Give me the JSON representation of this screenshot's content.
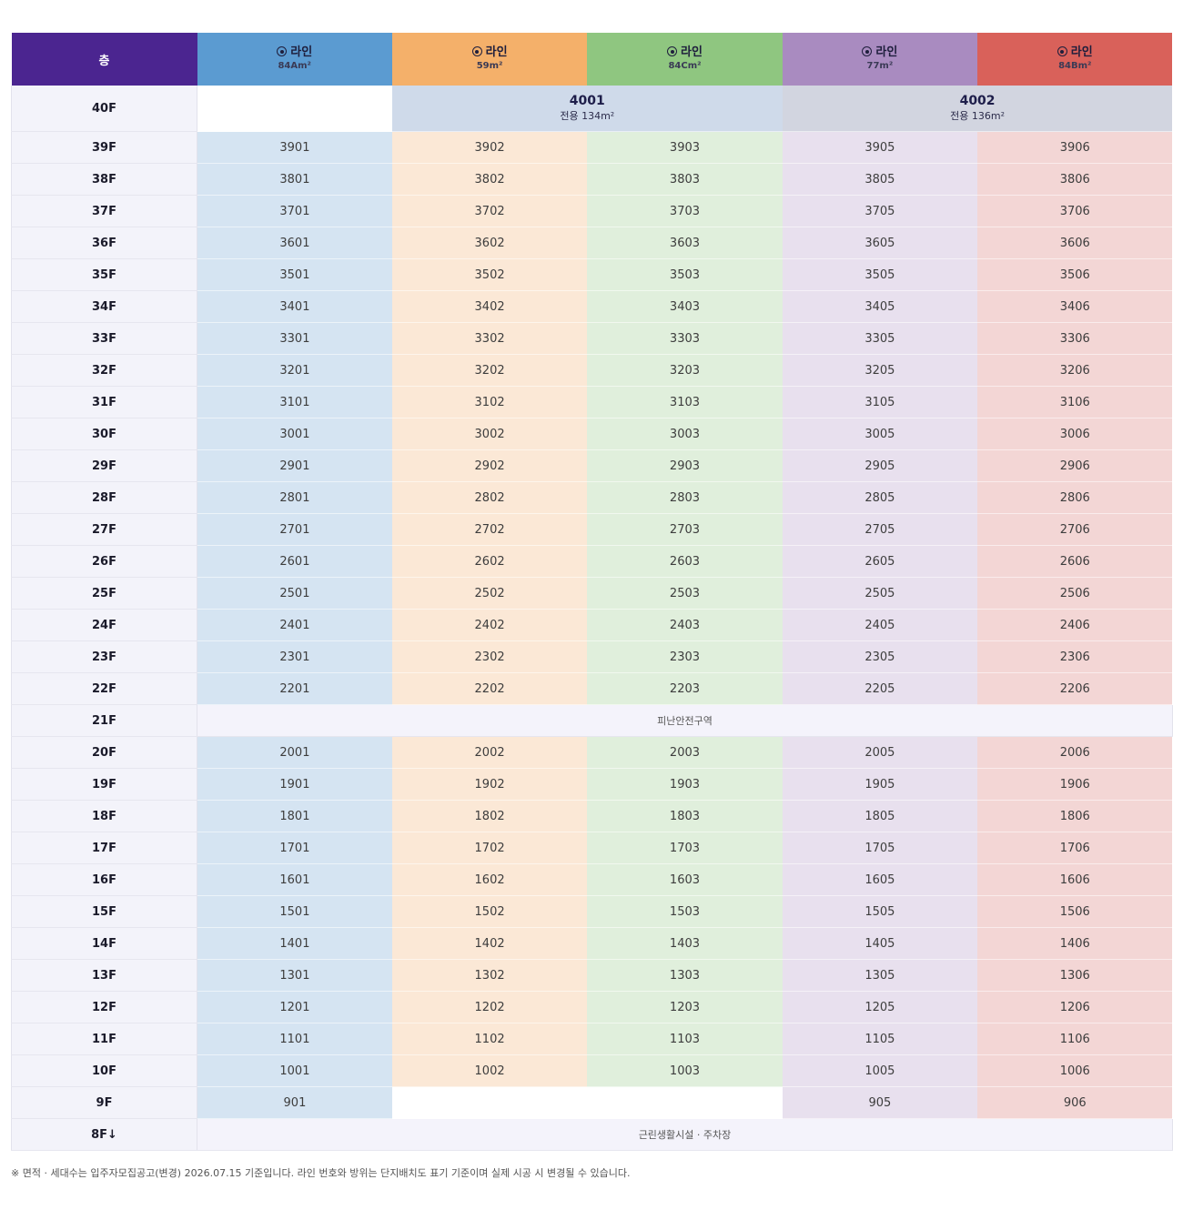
{
  "header": {
    "floor_label": "층",
    "lines": [
      {
        "label": "라인",
        "area": "84Am²",
        "color": "#5b9bd1"
      },
      {
        "label": "라인",
        "area": "59m²",
        "color": "#f4b06a"
      },
      {
        "label": "라인",
        "area": "84Cm²",
        "color": "#8fc680"
      },
      {
        "label": "라인",
        "area": "77m²",
        "color": "#a98bc0"
      },
      {
        "label": "라인",
        "area": "84Bm²",
        "color": "#d9615a"
      }
    ]
  },
  "cell_colors": [
    "#d5e4f2",
    "#fbe8d6",
    "#e0efdc",
    "#e8e0ee",
    "#f3d6d5"
  ],
  "penthouse": {
    "floor": "40F",
    "units": [
      {
        "number": "4001",
        "area": "전용 134m²",
        "color": "#cfdaea"
      },
      {
        "number": "4002",
        "area": "전용 136m²",
        "color": "#d2d5e0"
      }
    ]
  },
  "rows_upper": [
    {
      "floor": "39F",
      "units": [
        "3901",
        "3902",
        "3903",
        "3905",
        "3906"
      ]
    },
    {
      "floor": "38F",
      "units": [
        "3801",
        "3802",
        "3803",
        "3805",
        "3806"
      ]
    },
    {
      "floor": "37F",
      "units": [
        "3701",
        "3702",
        "3703",
        "3705",
        "3706"
      ]
    },
    {
      "floor": "36F",
      "units": [
        "3601",
        "3602",
        "3603",
        "3605",
        "3606"
      ]
    },
    {
      "floor": "35F",
      "units": [
        "3501",
        "3502",
        "3503",
        "3505",
        "3506"
      ]
    },
    {
      "floor": "34F",
      "units": [
        "3401",
        "3402",
        "3403",
        "3405",
        "3406"
      ]
    },
    {
      "floor": "33F",
      "units": [
        "3301",
        "3302",
        "3303",
        "3305",
        "3306"
      ]
    },
    {
      "floor": "32F",
      "units": [
        "3201",
        "3202",
        "3203",
        "3205",
        "3206"
      ]
    },
    {
      "floor": "31F",
      "units": [
        "3101",
        "3102",
        "3103",
        "3105",
        "3106"
      ]
    },
    {
      "floor": "30F",
      "units": [
        "3001",
        "3002",
        "3003",
        "3005",
        "3006"
      ]
    },
    {
      "floor": "29F",
      "units": [
        "2901",
        "2902",
        "2903",
        "2905",
        "2906"
      ]
    },
    {
      "floor": "28F",
      "units": [
        "2801",
        "2802",
        "2803",
        "2805",
        "2806"
      ]
    },
    {
      "floor": "27F",
      "units": [
        "2701",
        "2702",
        "2703",
        "2705",
        "2706"
      ]
    },
    {
      "floor": "26F",
      "units": [
        "2601",
        "2602",
        "2603",
        "2605",
        "2606"
      ]
    },
    {
      "floor": "25F",
      "units": [
        "2501",
        "2502",
        "2503",
        "2505",
        "2506"
      ]
    },
    {
      "floor": "24F",
      "units": [
        "2401",
        "2402",
        "2403",
        "2405",
        "2406"
      ]
    },
    {
      "floor": "23F",
      "units": [
        "2301",
        "2302",
        "2303",
        "2305",
        "2306"
      ]
    },
    {
      "floor": "22F",
      "units": [
        "2201",
        "2202",
        "2203",
        "2205",
        "2206"
      ]
    }
  ],
  "refuge": {
    "floor": "21F",
    "label": "피난안전구역"
  },
  "rows_lower": [
    {
      "floor": "20F",
      "units": [
        "2001",
        "2002",
        "2003",
        "2005",
        "2006"
      ]
    },
    {
      "floor": "19F",
      "units": [
        "1901",
        "1902",
        "1903",
        "1905",
        "1906"
      ]
    },
    {
      "floor": "18F",
      "units": [
        "1801",
        "1802",
        "1803",
        "1805",
        "1806"
      ]
    },
    {
      "floor": "17F",
      "units": [
        "1701",
        "1702",
        "1703",
        "1705",
        "1706"
      ]
    },
    {
      "floor": "16F",
      "units": [
        "1601",
        "1602",
        "1603",
        "1605",
        "1606"
      ]
    },
    {
      "floor": "15F",
      "units": [
        "1501",
        "1502",
        "1503",
        "1505",
        "1506"
      ]
    },
    {
      "floor": "14F",
      "units": [
        "1401",
        "1402",
        "1403",
        "1405",
        "1406"
      ]
    },
    {
      "floor": "13F",
      "units": [
        "1301",
        "1302",
        "1303",
        "1305",
        "1306"
      ]
    },
    {
      "floor": "12F",
      "units": [
        "1201",
        "1202",
        "1203",
        "1205",
        "1206"
      ]
    },
    {
      "floor": "11F",
      "units": [
        "1101",
        "1102",
        "1103",
        "1105",
        "1106"
      ]
    },
    {
      "floor": "10F",
      "units": [
        "1001",
        "1002",
        "1003",
        "1005",
        "1006"
      ]
    },
    {
      "floor": "9F",
      "units": [
        "901",
        null,
        null,
        "905",
        "906"
      ]
    }
  ],
  "base": {
    "floor": "8F↓",
    "label": "근린생활시설 · 주차장"
  },
  "footnote": "※ 면적 · 세대수는 입주자모집공고(변경) 2026.07.15 기준입니다. 라인 번호와 방위는 단지배치도 표기 기준이며 실제 시공 시 변경될 수 있습니다."
}
